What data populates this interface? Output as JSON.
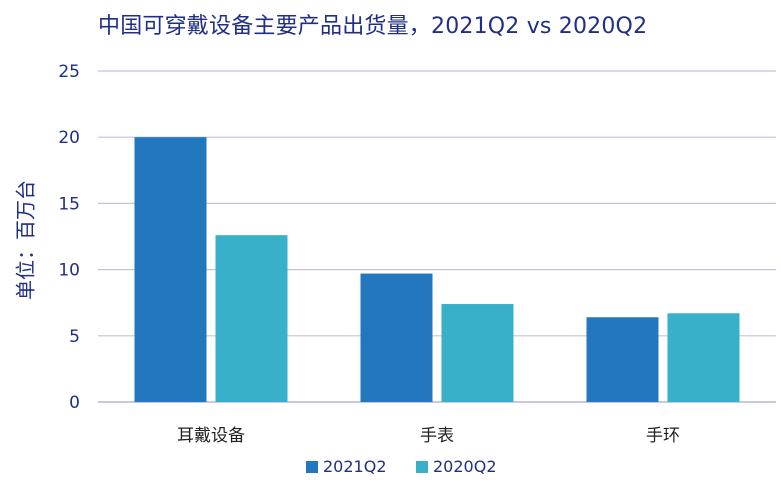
{
  "chart_data": {
    "type": "bar",
    "title": "中国可穿戴设备主要产品出货量，2021Q2 vs 2020Q2",
    "ylabel": "单位：百万台",
    "xlabel": "",
    "categories": [
      "耳戴设备",
      "手表",
      "手环"
    ],
    "series": [
      {
        "name": "2021Q2",
        "values": [
          20.0,
          9.7,
          6.4
        ],
        "color": "#2377bf"
      },
      {
        "name": "2020Q2",
        "values": [
          12.6,
          7.4,
          6.7
        ],
        "color": "#38b0ca"
      }
    ],
    "ylim": [
      0,
      25
    ],
    "yticks": [
      "0",
      "5",
      "10",
      "15",
      "20",
      "25"
    ],
    "grid": true,
    "legend_position": "bottom"
  }
}
